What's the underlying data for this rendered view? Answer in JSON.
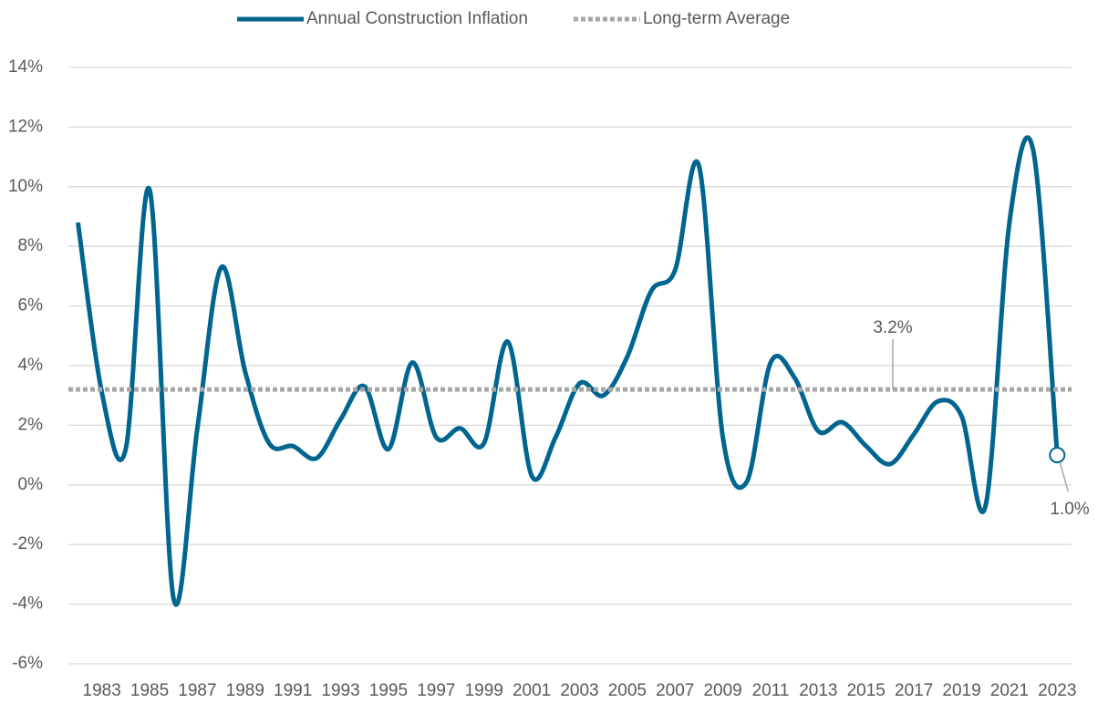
{
  "chart_data": {
    "type": "line",
    "x": [
      1982,
      1983,
      1984,
      1985,
      1986,
      1987,
      1988,
      1989,
      1990,
      1991,
      1992,
      1993,
      1994,
      1995,
      1996,
      1997,
      1998,
      1999,
      2000,
      2001,
      2002,
      2003,
      2004,
      2005,
      2006,
      2007,
      2008,
      2009,
      2010,
      2011,
      2012,
      2013,
      2014,
      2015,
      2016,
      2017,
      2018,
      2019,
      2020,
      2021,
      2022,
      2023
    ],
    "series": [
      {
        "name": "Annual Construction Inflation",
        "color": "#00658f",
        "values": [
          8.8,
          3.1,
          1.2,
          9.9,
          -3.8,
          1.9,
          7.3,
          3.8,
          1.4,
          1.3,
          0.9,
          2.2,
          3.3,
          1.2,
          4.1,
          1.6,
          1.9,
          1.4,
          4.8,
          0.3,
          1.6,
          3.4,
          3.0,
          4.3,
          6.5,
          7.2,
          10.7,
          1.6,
          0.1,
          4.1,
          3.6,
          1.8,
          2.1,
          1.3,
          0.7,
          1.7,
          2.8,
          2.3,
          -0.7,
          8.8,
          11.2,
          1.0
        ]
      },
      {
        "name": "Long-term Average",
        "color": "#a6a6a6",
        "dashed": true,
        "value": 3.2
      }
    ],
    "annotations": [
      {
        "text": "3.2%",
        "value": 3.2
      },
      {
        "text": "1.0%",
        "value": 1.0,
        "x": 2023
      }
    ],
    "xlim": [
      1981.6,
      2023.6
    ],
    "xticks": [
      1983,
      1985,
      1987,
      1989,
      1991,
      1993,
      1995,
      1997,
      1999,
      2001,
      2003,
      2005,
      2007,
      2009,
      2011,
      2013,
      2015,
      2017,
      2019,
      2021,
      2023
    ],
    "ylim": [
      -6,
      14
    ],
    "yticks": [
      {
        "value": -6,
        "label": "-6%"
      },
      {
        "value": -4,
        "label": "-4%"
      },
      {
        "value": -2,
        "label": "-2%"
      },
      {
        "value": 0,
        "label": "0%"
      },
      {
        "value": 2,
        "label": "2%"
      },
      {
        "value": 4,
        "label": "4%"
      },
      {
        "value": 6,
        "label": "6%"
      },
      {
        "value": 8,
        "label": "8%"
      },
      {
        "value": 10,
        "label": "10%"
      },
      {
        "value": 12,
        "label": "12%"
      },
      {
        "value": 14,
        "label": "14%"
      }
    ],
    "grid": true,
    "legend": "top"
  }
}
